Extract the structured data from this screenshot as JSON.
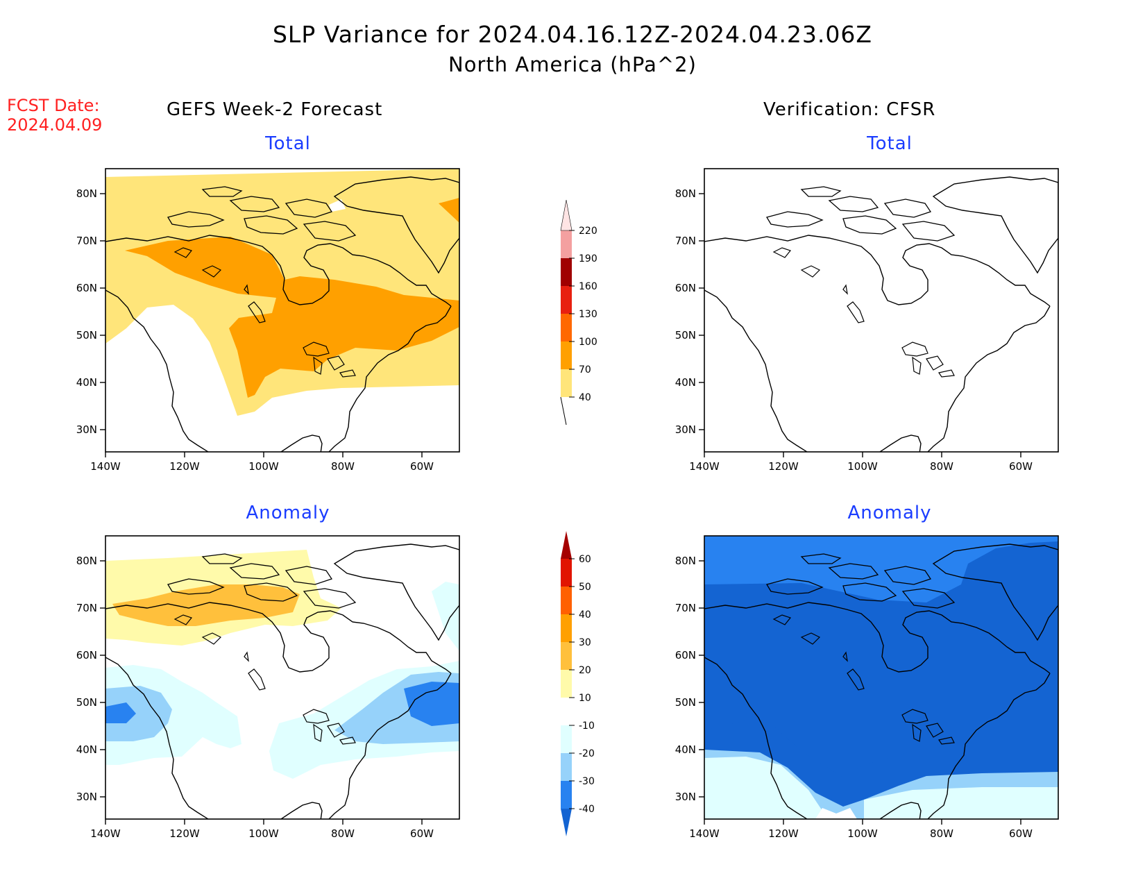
{
  "title": "SLP Variance for 2024.04.16.12Z-2024.04.23.06Z",
  "subtitle": "North America (hPa^2)",
  "fcst_label": "FCST Date:",
  "fcst_date": "2024.04.09",
  "left_heading": "GEFS Week-2 Forecast",
  "right_heading": "Verification: CFSR",
  "panels": {
    "forecast_total": {
      "title": "Total"
    },
    "forecast_anomaly": {
      "title": "Anomaly"
    },
    "verification_total": {
      "title": "Total"
    },
    "verification_anomaly": {
      "title": "Anomaly"
    }
  },
  "map_axes": {
    "lon_ticks": [
      "140W",
      "120W",
      "100W",
      "80W",
      "60W"
    ],
    "lat_ticks": [
      "80N",
      "70N",
      "60N",
      "50N",
      "40N",
      "30N"
    ]
  },
  "total_colorbar": {
    "labels": [
      "40",
      "70",
      "100",
      "130",
      "160",
      "190",
      "220"
    ],
    "colors": [
      "#ffe57a",
      "#ffa000",
      "#ff6800",
      "#e82010",
      "#a00000",
      "#f4a0a0",
      "#ffe4e4"
    ]
  },
  "anomaly_colorbar": {
    "labels": [
      "-40",
      "-30",
      "-20",
      "-10",
      "10",
      "20",
      "30",
      "40",
      "50",
      "60"
    ],
    "colors": [
      "#1464d2",
      "#2882f0",
      "#96d2fa",
      "#e0ffff",
      "#ffffff",
      "#fffaaa",
      "#ffc03c",
      "#ffa000",
      "#ff6000",
      "#e11400",
      "#a50000"
    ]
  }
}
